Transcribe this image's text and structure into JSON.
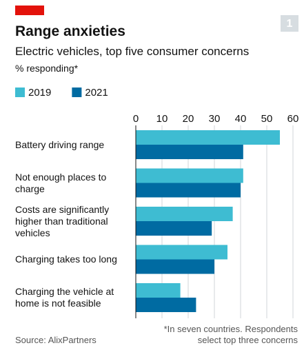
{
  "chart_data": {
    "type": "hbar",
    "badge": "1",
    "title": "Range anxieties",
    "subtitle": "Electric vehicles, top five consumer concerns",
    "unit_label": "% responding*",
    "categories": [
      "Battery driving range",
      "Not enough places to charge",
      "Costs are significantly higher than traditional vehicles",
      "Charging takes too long",
      "Charging the vehicle at home is not feasible"
    ],
    "series": [
      {
        "name": "2019",
        "color": "#3ebcd2",
        "values": [
          55,
          41,
          37,
          35,
          17
        ]
      },
      {
        "name": "2021",
        "color": "#006ba2",
        "values": [
          41,
          40,
          29,
          30,
          23
        ]
      }
    ],
    "xlim": [
      0,
      60
    ],
    "xticks": [
      0,
      10,
      20,
      30,
      40,
      50,
      60
    ],
    "grid": true,
    "footnote": "*In seven countries. Respondents select top three concerns",
    "source": "Source: AlixPartners"
  }
}
